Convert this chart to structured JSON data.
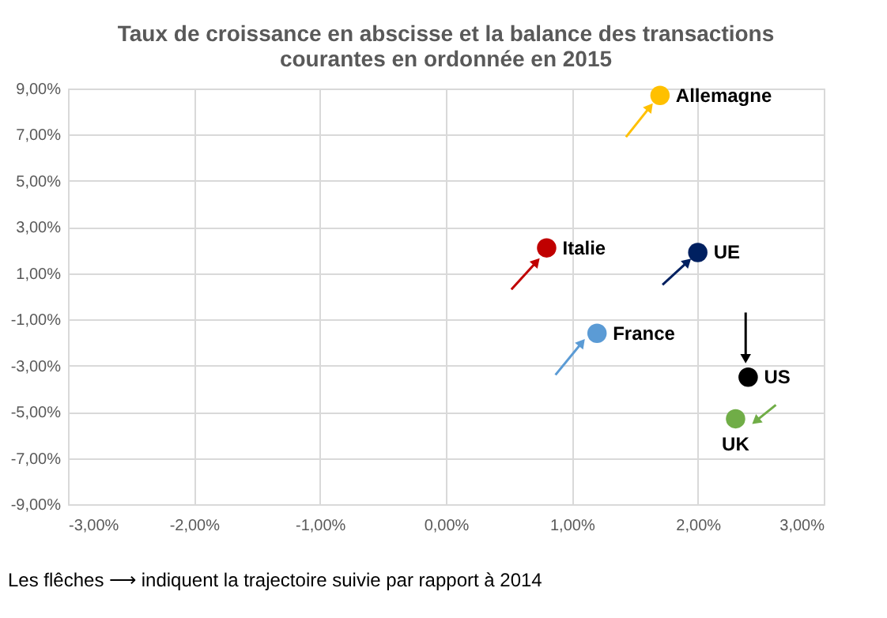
{
  "chart_data": {
    "type": "scatter",
    "title": "Taux de croissance en abscisse et la balance des transactions courantes en ordonnée en 2015",
    "series": [
      {
        "name": "Allemagne",
        "color": "#ffc000",
        "x": [
          1.7
        ],
        "values": [
          8.7
        ]
      },
      {
        "name": "Italie",
        "color": "#c00000",
        "x": [
          0.8
        ],
        "values": [
          2.1
        ]
      },
      {
        "name": "UE",
        "color": "#002060",
        "x": [
          2.0
        ],
        "values": [
          1.9
        ]
      },
      {
        "name": "France",
        "color": "#5b9bd5",
        "x": [
          1.2
        ],
        "values": [
          -1.6
        ]
      },
      {
        "name": "US",
        "color": "#000000",
        "x": [
          2.4
        ],
        "values": [
          -3.5
        ]
      },
      {
        "name": "UK",
        "color": "#70ad47",
        "x": [
          2.3
        ],
        "values": [
          -5.3
        ]
      },
      {
        "type": "line",
        "marker": "triangle",
        "color": "#ffc000",
        "x": [
          1.43,
          1.62
        ],
        "values": [
          6.9,
          8.2
        ]
      },
      {
        "type": "line",
        "marker": "triangle",
        "color": "#c00000",
        "x": [
          0.52,
          0.72
        ],
        "values": [
          0.3,
          1.5
        ]
      },
      {
        "type": "line",
        "marker": "triangle",
        "color": "#002060",
        "x": [
          1.72,
          1.92
        ],
        "values": [
          0.5,
          1.5
        ]
      },
      {
        "type": "line",
        "marker": "triangle",
        "color": "#5b9bd5",
        "x": [
          0.87,
          1.08
        ],
        "values": [
          -3.4,
          -2.0
        ]
      },
      {
        "type": "line",
        "marker": "triangle",
        "color": "#000000",
        "x": [
          2.38,
          2.38
        ],
        "values": [
          -0.7,
          -2.7
        ]
      },
      {
        "type": "line",
        "marker": "triangle",
        "color": "#70ad47",
        "x": [
          2.62,
          2.46
        ],
        "values": [
          -4.7,
          -5.4
        ]
      }
    ],
    "xlim": [
      -3,
      3
    ],
    "xticks": [
      {
        "value": -3,
        "label": "-3,00%"
      },
      {
        "value": -2,
        "label": "-2,00%"
      },
      {
        "value": -1,
        "label": "-1,00%"
      },
      {
        "value": 0,
        "label": "0,00%"
      },
      {
        "value": 1,
        "label": "1,00%"
      },
      {
        "value": 2,
        "label": "2,00%"
      },
      {
        "value": 3,
        "label": "3,00%"
      }
    ],
    "ylim": [
      -9,
      9
    ],
    "yticks": [
      {
        "value": -9,
        "label": "-9,00%"
      },
      {
        "value": -7,
        "label": "-7,00%"
      },
      {
        "value": -5,
        "label": "-5,00%"
      },
      {
        "value": -3,
        "label": "-3,00%"
      },
      {
        "value": -1,
        "label": "-1,00%"
      },
      {
        "value": 1,
        "label": "1,00%"
      },
      {
        "value": 3,
        "label": "3,00%"
      },
      {
        "value": 5,
        "label": "5,00%"
      },
      {
        "value": 7,
        "label": "7,00%"
      },
      {
        "value": 9,
        "label": "9,00%"
      }
    ],
    "grid": true,
    "marker": "circle",
    "line_style": "solid",
    "annotations": [
      "Les flêches ⟶ indiquent la trajectoire suivie par rapport à 2014"
    ]
  }
}
